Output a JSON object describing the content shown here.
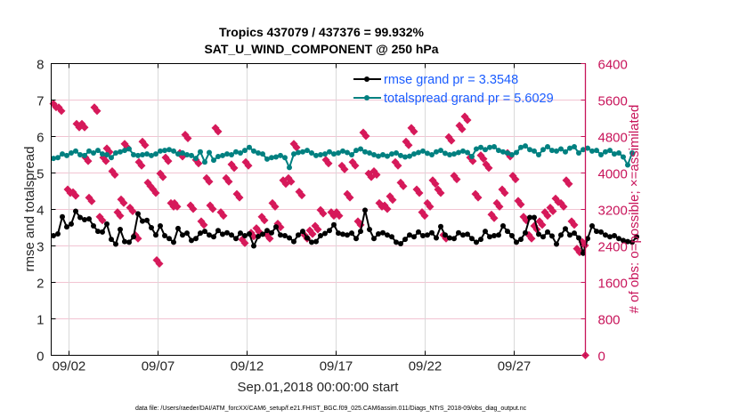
{
  "chart_data": {
    "type": "line",
    "title": [
      "Tropics 437079 / 437376 = 99.932%",
      "SAT_U_WIND_COMPONENT @ 250 hPa"
    ],
    "xlabel": "Sep.01,2018 00:00:00 start",
    "ylabel": "rmse and totalspread",
    "ylabel_right": "# of obs: o=possible; ×=assimilated",
    "footer": "data file: /Users/raeder/DAI/ATM_forcXX/CAM6_setup/f.e21.FHIST_BGC.f09_025.CAM6assim.011/Diags_NTrS_2018-09/obs_diag_output.nc",
    "x_unit": "days since Sep.01,2018 00:00:00",
    "xlim": [
      0,
      30
    ],
    "x_ticks": [
      {
        "value": 1,
        "label": "09/02"
      },
      {
        "value": 6,
        "label": "09/07"
      },
      {
        "value": 11,
        "label": "09/12"
      },
      {
        "value": 16,
        "label": "09/17"
      },
      {
        "value": 21,
        "label": "09/22"
      },
      {
        "value": 26,
        "label": "09/27"
      }
    ],
    "ylim": [
      0,
      8
    ],
    "y_ticks": [
      0,
      1,
      2,
      3,
      4,
      5,
      6,
      7,
      8
    ],
    "ylim_right": [
      0,
      6400
    ],
    "y_ticks_right": [
      0,
      800,
      1600,
      2400,
      3200,
      4000,
      4800,
      5600,
      6400
    ],
    "grid": true,
    "legend_position": "top-right",
    "colors": {
      "rmse": "#000000",
      "totalspread": "#008080",
      "obs": "#d6195a",
      "legend_text": "#1a5cff",
      "right_axis": "#c8145a",
      "hgrid": "#f2c4d2",
      "vgrid": "#d9d9d9"
    },
    "x_step_days": 0.25,
    "x_start_day": 0.125,
    "series": [
      {
        "name": "rmse grand pr = 3.3548",
        "axis": "left",
        "marker": "circle",
        "values": [
          3.28,
          3.33,
          3.8,
          3.52,
          3.6,
          3.95,
          3.78,
          3.72,
          3.74,
          3.55,
          3.4,
          3.38,
          3.6,
          3.18,
          3.05,
          3.45,
          3.12,
          3.1,
          3.25,
          3.88,
          3.68,
          3.7,
          3.5,
          3.3,
          3.55,
          3.28,
          3.2,
          3.1,
          3.48,
          3.3,
          3.35,
          3.15,
          3.2,
          3.35,
          3.4,
          3.3,
          3.25,
          3.42,
          3.32,
          3.36,
          3.3,
          3.2,
          3.35,
          3.28,
          3.33,
          3.0,
          3.26,
          3.32,
          3.42,
          3.36,
          3.52,
          3.3,
          3.28,
          3.22,
          3.12,
          3.3,
          3.4,
          3.22,
          3.1,
          3.12,
          3.28,
          3.34,
          3.42,
          3.58,
          3.35,
          3.32,
          3.3,
          3.35,
          3.2,
          3.4,
          3.98,
          3.45,
          3.2,
          3.33,
          3.36,
          3.3,
          3.25,
          3.1,
          3.06,
          3.18,
          3.3,
          3.25,
          3.38,
          3.28,
          3.3,
          3.36,
          3.22,
          3.53,
          3.3,
          3.22,
          3.2,
          3.36,
          3.3,
          3.32,
          3.2,
          3.1,
          3.18,
          3.4,
          3.25,
          3.28,
          3.3,
          3.55,
          3.4,
          3.28,
          3.1,
          3.18,
          3.36,
          3.78,
          3.78,
          3.32,
          3.25,
          3.38,
          3.27,
          3.05,
          3.3,
          3.47,
          3.3,
          3.35,
          3.22,
          2.8,
          3.2,
          3.55,
          3.4,
          3.38,
          3.3,
          3.25,
          3.28,
          3.2,
          3.15,
          3.12,
          3.1,
          3.25
        ]
      },
      {
        "name": "totalspread grand pr = 5.6029",
        "axis": "left",
        "marker": "circle",
        "values": [
          5.4,
          5.42,
          5.52,
          5.48,
          5.55,
          5.6,
          5.5,
          5.48,
          5.6,
          5.55,
          5.62,
          5.52,
          5.5,
          5.42,
          5.55,
          5.58,
          5.62,
          5.66,
          5.5,
          5.48,
          5.5,
          5.52,
          5.48,
          5.52,
          5.6,
          5.62,
          5.64,
          5.6,
          5.52,
          5.55,
          5.5,
          5.48,
          5.4,
          5.58,
          5.3,
          5.56,
          5.35,
          5.45,
          5.48,
          5.52,
          5.5,
          5.58,
          5.55,
          5.62,
          5.7,
          5.6,
          5.55,
          5.52,
          5.38,
          5.42,
          5.44,
          5.48,
          5.42,
          5.15,
          5.52,
          5.56,
          5.58,
          5.62,
          5.55,
          5.48,
          5.5,
          5.52,
          5.58,
          5.52,
          5.55,
          5.6,
          5.56,
          5.5,
          5.62,
          5.66,
          5.58,
          5.55,
          5.5,
          5.46,
          5.5,
          5.46,
          5.52,
          5.55,
          5.48,
          5.44,
          5.46,
          5.52,
          5.56,
          5.6,
          5.54,
          5.5,
          5.58,
          5.62,
          5.54,
          5.5,
          5.52,
          5.56,
          5.6,
          5.56,
          5.45,
          5.66,
          5.7,
          5.64,
          5.7,
          5.72,
          5.62,
          5.58,
          5.55,
          5.5,
          5.56,
          5.7,
          5.74,
          5.64,
          5.6,
          5.5,
          5.64,
          5.72,
          5.62,
          5.6,
          5.66,
          5.58,
          5.68,
          5.72,
          5.55,
          5.64,
          5.68,
          5.6,
          5.62,
          5.5,
          5.58,
          5.62,
          5.52,
          5.55,
          5.44,
          5.22,
          5.55
        ]
      }
    ],
    "obs_counts": {
      "name": "# of obs",
      "axis": "right",
      "marker": "diamond",
      "x": [
        0.2,
        0.5,
        1.0,
        1.3,
        1.5,
        1.8,
        2.0,
        2.2,
        2.5,
        2.8,
        3.0,
        3.2,
        3.5,
        3.8,
        4.0,
        4.2,
        4.5,
        4.8,
        5.0,
        5.2,
        5.5,
        5.8,
        6.0,
        6.2,
        6.5,
        6.8,
        7.0,
        7.3,
        7.6,
        7.9,
        8.2,
        8.5,
        8.8,
        9.0,
        9.3,
        9.6,
        9.9,
        10.2,
        10.5,
        10.8,
        11.0,
        11.3,
        11.6,
        11.9,
        12.2,
        12.5,
        12.8,
        13.1,
        13.4,
        13.7,
        14.0,
        14.3,
        14.6,
        14.9,
        15.2,
        15.5,
        15.8,
        16.1,
        16.4,
        16.7,
        17.0,
        17.3,
        17.6,
        17.9,
        18.2,
        18.5,
        18.8,
        19.1,
        19.4,
        19.7,
        20.0,
        20.3,
        20.6,
        20.9,
        21.2,
        21.5,
        21.8,
        22.1,
        22.4,
        22.7,
        23.0,
        23.3,
        23.6,
        23.9,
        24.2,
        24.5,
        24.8,
        25.1,
        25.4,
        25.7,
        26.0,
        26.3,
        26.6,
        26.9,
        27.2,
        27.5,
        27.8,
        28.1,
        28.4,
        28.7,
        29.0,
        29.3,
        29.6,
        29.9
      ],
      "values": [
        5480,
        5400,
        3600,
        3540,
        5040,
        5040,
        4300,
        3420,
        5400,
        3000,
        4300,
        4500,
        4000,
        3100,
        3380,
        4600,
        3200,
        2600,
        4200,
        4650,
        3750,
        3600,
        2050,
        3950,
        4300,
        3300,
        3300,
        4400,
        4800,
        3250,
        4250,
        2900,
        3850,
        3250,
        4950,
        3100,
        3850,
        4150,
        3500,
        2500,
        4200,
        2650,
        2750,
        3000,
        2600,
        3300,
        2850,
        3800,
        3850,
        4600,
        3550,
        2600,
        2700,
        2800,
        3150,
        4250,
        3100,
        3100,
        4120,
        3500,
        4200,
        2900,
        4850,
        3950,
        4000,
        3300,
        3250,
        3450,
        4200,
        3750,
        4650,
        4950,
        3600,
        3100,
        3300,
        3800,
        3600,
        2600,
        4750,
        3900,
        5000,
        5200,
        4300,
        3500,
        4350,
        4150,
        3050,
        3300,
        3600,
        4400,
        3900,
        3350,
        3000,
        2600,
        2800,
        2900,
        3100,
        3200,
        3400,
        3300,
        3800,
        2900,
        2300,
        2450
      ]
    }
  }
}
